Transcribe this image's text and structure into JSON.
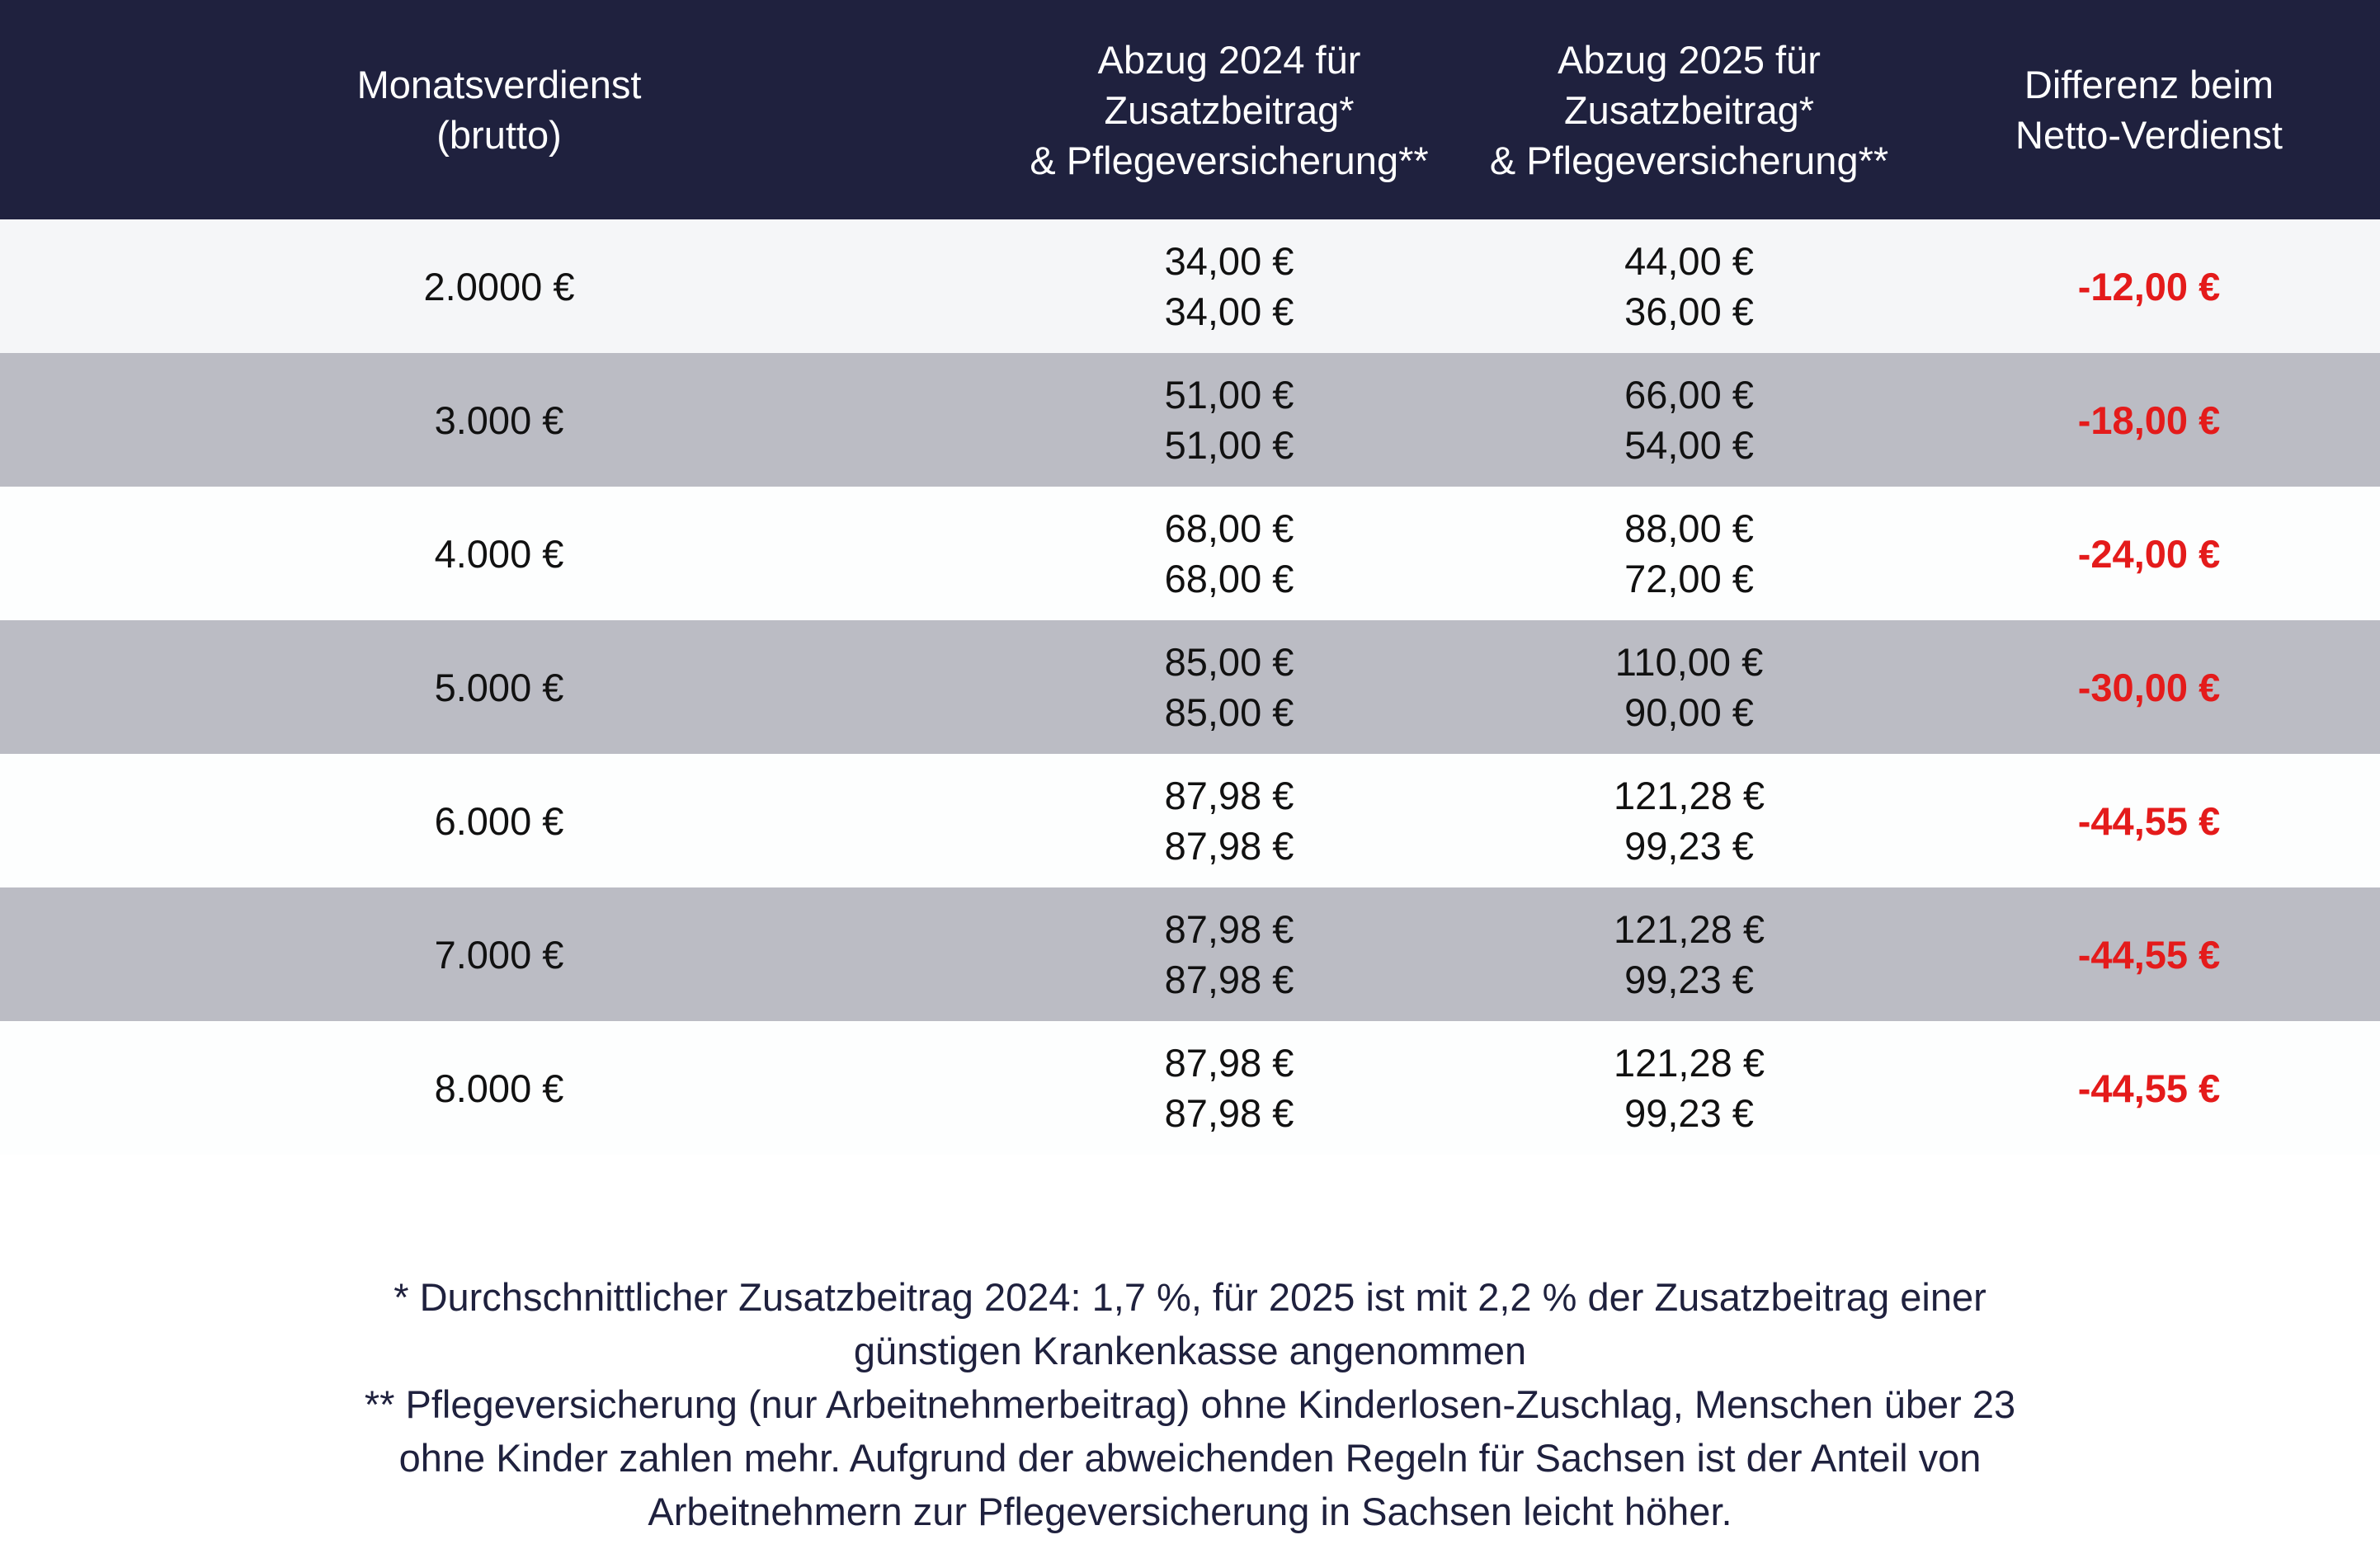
{
  "header": {
    "col1": "Monatsverdienst\n(brutto)",
    "col2": "Abzug 2024 für\nZusatzbeitrag*\n& Pflegeversicherung**",
    "col3": "Abzug 2025 für\nZusatzbeitrag*\n& Pflegeversicherung**",
    "col4": "Differenz beim\nNetto-Verdienst"
  },
  "rows": [
    {
      "salary": "2.0000 €",
      "y2024": [
        "34,00 €",
        "34,00 €"
      ],
      "y2025": [
        "44,00 €",
        "36,00 €"
      ],
      "diff": "-12,00 €"
    },
    {
      "salary": "3.000 €",
      "y2024": [
        "51,00 €",
        "51,00 €"
      ],
      "y2025": [
        "66,00 €",
        "54,00 €"
      ],
      "diff": "-18,00 €"
    },
    {
      "salary": "4.000 €",
      "y2024": [
        "68,00 €",
        "68,00 €"
      ],
      "y2025": [
        "88,00 €",
        "72,00 €"
      ],
      "diff": "-24,00 €"
    },
    {
      "salary": "5.000 €",
      "y2024": [
        "85,00 €",
        "85,00 €"
      ],
      "y2025": [
        "110,00 €",
        "90,00 €"
      ],
      "diff": "-30,00 €"
    },
    {
      "salary": "6.000 €",
      "y2024": [
        "87,98 €",
        "87,98 €"
      ],
      "y2025": [
        "121,28 €",
        "99,23 €"
      ],
      "diff": "-44,55 €"
    },
    {
      "salary": "7.000 €",
      "y2024": [
        "87,98 €",
        "87,98 €"
      ],
      "y2025": [
        "121,28 €",
        "99,23 €"
      ],
      "diff": "-44,55 €"
    },
    {
      "salary": "8.000 €",
      "y2024": [
        "87,98 €",
        "87,98 €"
      ],
      "y2025": [
        "121,28 €",
        "99,23 €"
      ],
      "diff": "-44,55 €"
    }
  ],
  "footnotes": {
    "note1_line1": "* Durchschnittlicher Zusatzbeitrag 2024: 1,7 %, für 2025 ist mit 2,2 % der Zusatzbeitrag einer",
    "note1_line2": "günstigen Krankenkasse angenommen",
    "note2_line1": "** Pflegeversicherung (nur Arbeitnehmerbeitrag) ohne Kinderlosen-Zuschlag, Menschen über 23",
    "note2_line2": "ohne Kinder zahlen mehr. Aufgrund der abweichenden Regeln für Sachsen ist der Anteil von",
    "note2_line3": "Arbeitnehmern zur Pflegeversicherung in Sachsen leicht höher."
  },
  "colors": {
    "header_bg": "#1f213e",
    "row_dark": "#bbbcc4",
    "diff_red": "#e41b1b"
  }
}
